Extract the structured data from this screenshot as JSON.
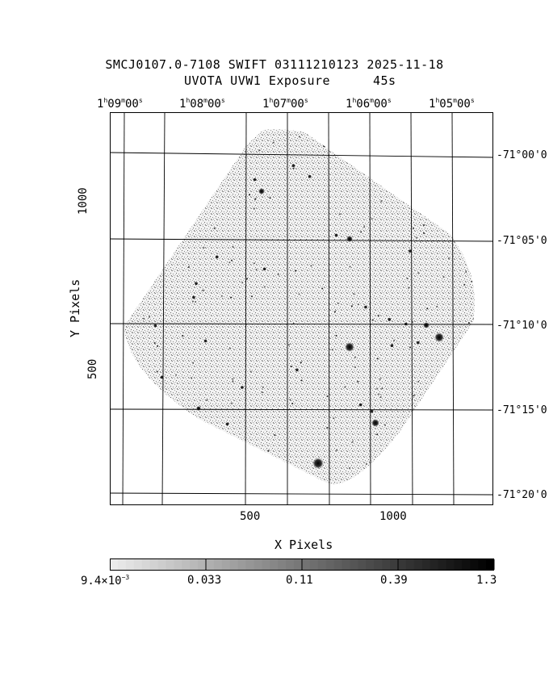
{
  "title": {
    "line1": "SMCJ0107.0-7108 SWIFT 03111210123 2025-11-18",
    "line2_left": "UVOTA UVW1 Exposure",
    "line2_right": "45s"
  },
  "axes": {
    "x_label": "X Pixels",
    "y_label": "Y Pixels",
    "x_ticks": [
      "500",
      "1000"
    ],
    "y_ticks": [
      "1000",
      "500"
    ],
    "ra_ticks": [
      {
        "h": "1",
        "m": "09",
        "s": "00"
      },
      {
        "h": "1",
        "m": "08",
        "s": "00"
      },
      {
        "h": "1",
        "m": "07",
        "s": "00"
      },
      {
        "h": "1",
        "m": "06",
        "s": "00"
      },
      {
        "h": "1",
        "m": "05",
        "s": "00"
      }
    ],
    "dec_ticks": [
      "-71°00'0",
      "-71°05'0",
      "-71°10'0",
      "-71°15'0",
      "-71°20'0"
    ]
  },
  "colorbar": {
    "labels": [
      "9.4×10",
      "0.033",
      "0.11",
      "0.39",
      "1.3"
    ],
    "first_exp": "−3",
    "scale": "log"
  },
  "colors": {
    "background": "#ffffff",
    "ink": "#000000",
    "grid": "#000000"
  }
}
